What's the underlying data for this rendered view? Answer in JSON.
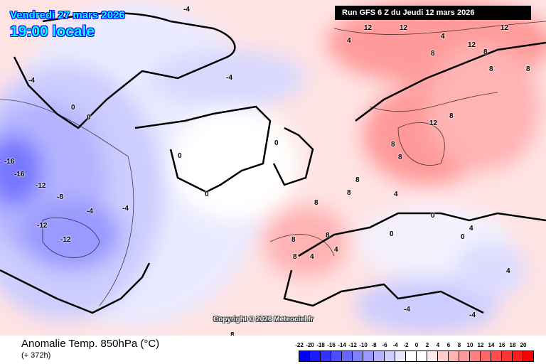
{
  "header": {
    "date": "Vendredi 27 mars 2026",
    "time": "19:00 locale",
    "run": "Run GFS 6 Z du Jeudi 12 mars 2026"
  },
  "copyright": "Copyright © 2026 Meteociel.fr",
  "footer": {
    "variable": "Anomalie Temp. 850hPa (°C)",
    "lead": "(+ 372h)"
  },
  "legend": [
    {
      "label": "-22",
      "color": "#0000ff"
    },
    {
      "label": "-20",
      "color": "#1a1aff"
    },
    {
      "label": "-18",
      "color": "#3333ff"
    },
    {
      "label": "-16",
      "color": "#4d4dff"
    },
    {
      "label": "-14",
      "color": "#6666ff"
    },
    {
      "label": "-12",
      "color": "#8080ff"
    },
    {
      "label": "-10",
      "color": "#9999ff"
    },
    {
      "label": "-8",
      "color": "#b3b3ff"
    },
    {
      "label": "-6",
      "color": "#ccccff"
    },
    {
      "label": "-4",
      "color": "#e6e6ff"
    },
    {
      "label": "-2",
      "color": "#ffffff"
    },
    {
      "label": "0",
      "color": "#ffffff"
    },
    {
      "label": "2",
      "color": "#ffe6e6"
    },
    {
      "label": "4",
      "color": "#ffcccc"
    },
    {
      "label": "6",
      "color": "#ffb3b3"
    },
    {
      "label": "8",
      "color": "#ff9999"
    },
    {
      "label": "10",
      "color": "#ff8080"
    },
    {
      "label": "12",
      "color": "#ff6666"
    },
    {
      "label": "14",
      "color": "#ff4d4d"
    },
    {
      "label": "16",
      "color": "#ff3333"
    },
    {
      "label": "18",
      "color": "#ff1a1a"
    },
    {
      "label": "20",
      "color": "#ff0000"
    }
  ],
  "contour_labels": [
    "-4",
    "-16",
    "-16",
    "-12",
    "-8",
    "-4",
    "-12",
    "-12",
    "-4",
    "-4",
    "0",
    "0",
    "0",
    "0",
    "-4",
    "4",
    "4",
    "8",
    "8",
    "8",
    "8",
    "12",
    "12",
    "12",
    "12",
    "8",
    "8",
    "8",
    "12",
    "8",
    "8",
    "4",
    "4",
    "8",
    "8",
    "8",
    "8",
    "4",
    "0",
    "0",
    "0",
    "-4",
    "-4",
    "4",
    "4",
    "0",
    "8"
  ]
}
